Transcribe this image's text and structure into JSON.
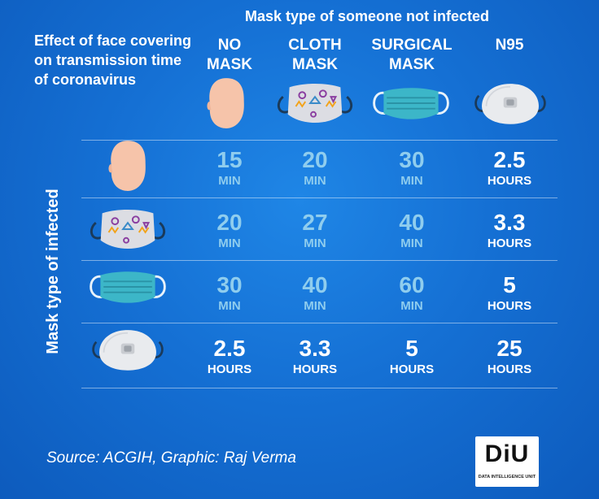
{
  "top_title": "Mask type of someone not infected",
  "main_title": "Effect of face covering on transmission time of coronavirus",
  "side_title": "Mask type of infected",
  "columns": [
    {
      "label": "NO MASK",
      "icon": "face-icon"
    },
    {
      "label": "CLOTH MASK",
      "icon": "cloth-mask-icon"
    },
    {
      "label": "SURGICAL MASK",
      "icon": "surgical-mask-icon"
    },
    {
      "label": "N95",
      "icon": "n95-mask-icon"
    }
  ],
  "rows": [
    {
      "icon": "face-icon",
      "cells": [
        {
          "value": "15",
          "unit": "MIN"
        },
        {
          "value": "20",
          "unit": "MIN"
        },
        {
          "value": "30",
          "unit": "MIN"
        },
        {
          "value": "2.5",
          "unit": "HOURS"
        }
      ]
    },
    {
      "icon": "cloth-mask-icon",
      "cells": [
        {
          "value": "20",
          "unit": "MIN"
        },
        {
          "value": "27",
          "unit": "MIN"
        },
        {
          "value": "40",
          "unit": "MIN"
        },
        {
          "value": "3.3",
          "unit": "HOURS"
        }
      ]
    },
    {
      "icon": "surgical-mask-icon",
      "cells": [
        {
          "value": "30",
          "unit": "MIN"
        },
        {
          "value": "40",
          "unit": "MIN"
        },
        {
          "value": "60",
          "unit": "MIN"
        },
        {
          "value": "5",
          "unit": "HOURS"
        }
      ]
    },
    {
      "icon": "n95-mask-icon",
      "cells": [
        {
          "value": "2.5",
          "unit": "HOURS"
        },
        {
          "value": "3.3",
          "unit": "HOURS"
        },
        {
          "value": "5",
          "unit": "HOURS"
        },
        {
          "value": "25",
          "unit": "HOURS"
        }
      ]
    }
  ],
  "source": "Source: ACGIH, Graphic: Raj Verma",
  "logo": {
    "text": "DiU",
    "subtext": "DATA INTELLIGENCE UNIT"
  },
  "colors": {
    "background": "#1570d4",
    "minutes_text": "#8fcdee",
    "hours_text": "#ffffff"
  }
}
